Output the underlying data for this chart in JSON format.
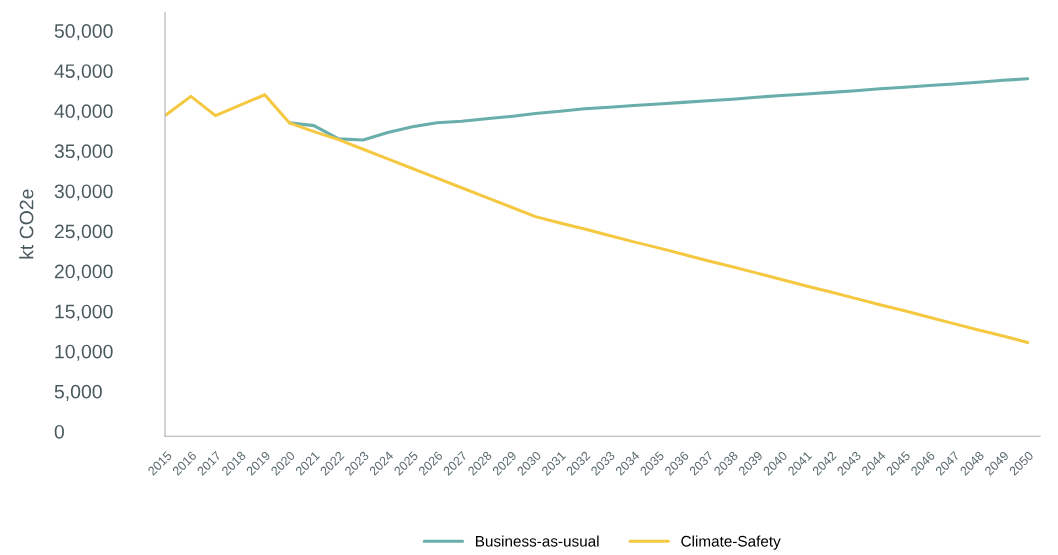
{
  "chart_data": {
    "type": "line",
    "ylabel": "kt CO2e",
    "categories": [
      "2015",
      "2016",
      "2017",
      "2018",
      "2019",
      "2020",
      "2021",
      "2022",
      "2023",
      "2024",
      "2025",
      "2026",
      "2027",
      "2028",
      "2029",
      "2030",
      "2031",
      "2032",
      "2033",
      "2034",
      "2035",
      "2036",
      "2037",
      "2038",
      "2039",
      "2040",
      "2041",
      "2042",
      "2043",
      "2044",
      "2045",
      "2046",
      "2047",
      "2048",
      "2049",
      "2050"
    ],
    "series": [
      {
        "name": "Business-as-usual",
        "color": "#6aaeac",
        "values": [
          null,
          null,
          null,
          null,
          null,
          38500,
          38150,
          36500,
          36350,
          37300,
          38000,
          38500,
          38700,
          39000,
          39300,
          39650,
          39950,
          40250,
          40450,
          40650,
          40850,
          41050,
          41250,
          41450,
          41700,
          41900,
          42100,
          42300,
          42500,
          42750,
          42950,
          43150,
          43350,
          43550,
          43800,
          44000
        ]
      },
      {
        "name": "Climate-Safety",
        "color": "#f5c842",
        "values": [
          39500,
          41800,
          39400,
          40700,
          42000,
          38500,
          37400,
          36400,
          35200,
          34000,
          32800,
          31600,
          30400,
          29200,
          28000,
          26800,
          26000,
          25250,
          24450,
          23650,
          22900,
          22100,
          21300,
          20550,
          19750,
          18950,
          18150,
          17400,
          16600,
          15800,
          15050,
          14250,
          13450,
          12650,
          11900,
          11100
        ]
      }
    ],
    "ylim": [
      -600,
      52300
    ],
    "yticks": [
      {
        "value": 0,
        "label": "0"
      },
      {
        "value": 5000,
        "label": "5,000"
      },
      {
        "value": 10000,
        "label": "10,000"
      },
      {
        "value": 15000,
        "label": "15,000"
      },
      {
        "value": 20000,
        "label": "20,000"
      },
      {
        "value": 25000,
        "label": "25,000"
      },
      {
        "value": 30000,
        "label": "30,000"
      },
      {
        "value": 35000,
        "label": "35,000"
      },
      {
        "value": 40000,
        "label": "40,000"
      },
      {
        "value": 45000,
        "label": "45,000"
      },
      {
        "value": 50000,
        "label": "50,000"
      }
    ],
    "grid": false,
    "legend": "bottom",
    "marker": "none",
    "line_style": "solid"
  }
}
